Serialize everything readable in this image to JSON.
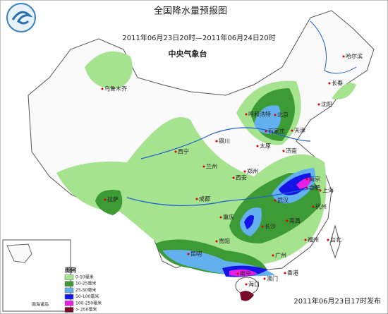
{
  "title": "全国降水量预报图",
  "period": "2011年06月23日20时—2011年06月24日20时",
  "issuer": "中央气象台",
  "issued": "2011年06月23日17时发布",
  "inset_label": "南海诸岛",
  "legend": {
    "title": "图例",
    "items": [
      {
        "label": "0-10毫米",
        "color": "#a6e38f"
      },
      {
        "label": "10-25毫米",
        "color": "#3d9b35"
      },
      {
        "label": "25-50毫米",
        "color": "#62b0ee"
      },
      {
        "label": "50-100毫米",
        "color": "#1414e6"
      },
      {
        "label": "100-250毫米",
        "color": "#e61ee6"
      },
      {
        "label": "> 250毫米",
        "color": "#7a0a2a"
      }
    ]
  },
  "cities": [
    "乌鲁木齐",
    "哈尔滨",
    "长春",
    "沈阳",
    "呼和浩特",
    "北京",
    "石家庄",
    "天津",
    "太原",
    "银川",
    "西宁",
    "兰州",
    "济南",
    "郑州",
    "西安",
    "成都",
    "拉萨",
    "武汉",
    "合肥",
    "南京",
    "上海",
    "杭州",
    "重庆",
    "长沙",
    "南昌",
    "贵阳",
    "昆明",
    "福州",
    "广州",
    "南宁",
    "香港",
    "澳门",
    "台北",
    "海口"
  ]
}
